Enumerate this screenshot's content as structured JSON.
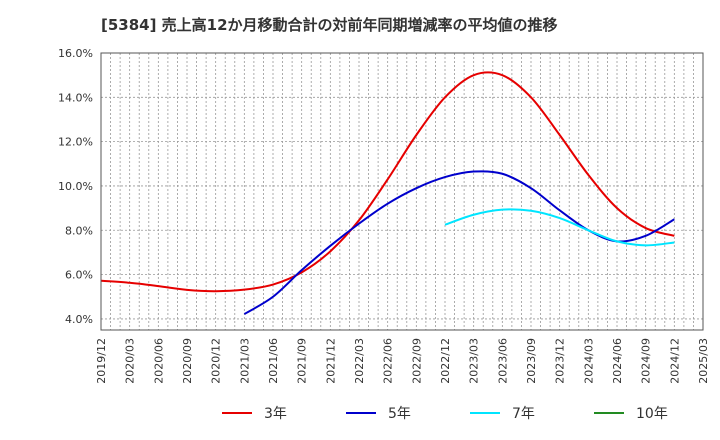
{
  "chart_data": {
    "type": "line",
    "title": "[5384]  売上高12か月移動合計の対前年同期増減率の平均値の推移",
    "xlabel": "",
    "ylabel": "",
    "ylim": [
      3.5,
      16.0
    ],
    "y_ticks": [
      "4.0%",
      "6.0%",
      "8.0%",
      "10.0%",
      "12.0%",
      "14.0%",
      "16.0%"
    ],
    "x_ticks": [
      "2019/12",
      "2020/03",
      "2020/06",
      "2020/09",
      "2020/12",
      "2021/03",
      "2021/06",
      "2021/09",
      "2021/12",
      "2022/03",
      "2022/06",
      "2022/09",
      "2022/12",
      "2023/03",
      "2023/06",
      "2023/09",
      "2023/12",
      "2024/03",
      "2024/06",
      "2024/09",
      "2024/12",
      "2025/03"
    ],
    "grid": true,
    "legend_position": "bottom",
    "series": [
      {
        "name": "3年",
        "color": "#e60000",
        "points": [
          [
            "2019/12",
            5.72
          ],
          [
            "2020/03",
            5.63
          ],
          [
            "2020/06",
            5.48
          ],
          [
            "2020/09",
            5.31
          ],
          [
            "2020/12",
            5.25
          ],
          [
            "2021/03",
            5.32
          ],
          [
            "2021/06",
            5.55
          ],
          [
            "2021/09",
            6.1
          ],
          [
            "2021/12",
            7.05
          ],
          [
            "2022/03",
            8.45
          ],
          [
            "2022/06",
            10.3
          ],
          [
            "2022/09",
            12.3
          ],
          [
            "2022/12",
            14.0
          ],
          [
            "2023/03",
            15.0
          ],
          [
            "2023/06",
            15.0
          ],
          [
            "2023/09",
            14.0
          ],
          [
            "2023/12",
            12.3
          ],
          [
            "2024/03",
            10.5
          ],
          [
            "2024/06",
            9.0
          ],
          [
            "2024/09",
            8.1
          ],
          [
            "2024/12",
            7.75
          ]
        ]
      },
      {
        "name": "5年",
        "color": "#0000cc",
        "points": [
          [
            "2021/03",
            4.22
          ],
          [
            "2021/06",
            5.0
          ],
          [
            "2021/09",
            6.2
          ],
          [
            "2021/12",
            7.3
          ],
          [
            "2022/03",
            8.3
          ],
          [
            "2022/06",
            9.2
          ],
          [
            "2022/09",
            9.9
          ],
          [
            "2022/12",
            10.4
          ],
          [
            "2023/03",
            10.65
          ],
          [
            "2023/06",
            10.55
          ],
          [
            "2023/09",
            9.9
          ],
          [
            "2023/12",
            8.9
          ],
          [
            "2024/03",
            8.0
          ],
          [
            "2024/06",
            7.5
          ],
          [
            "2024/09",
            7.75
          ],
          [
            "2024/12",
            8.5
          ]
        ]
      },
      {
        "name": "7年",
        "color": "#00e5ff",
        "points": [
          [
            "2022/12",
            8.25
          ],
          [
            "2023/03",
            8.7
          ],
          [
            "2023/06",
            8.93
          ],
          [
            "2023/09",
            8.88
          ],
          [
            "2023/12",
            8.55
          ],
          [
            "2024/03",
            8.0
          ],
          [
            "2024/06",
            7.5
          ],
          [
            "2024/09",
            7.32
          ],
          [
            "2024/12",
            7.45
          ]
        ]
      },
      {
        "name": "10年",
        "color": "#228b22",
        "points": []
      }
    ]
  }
}
